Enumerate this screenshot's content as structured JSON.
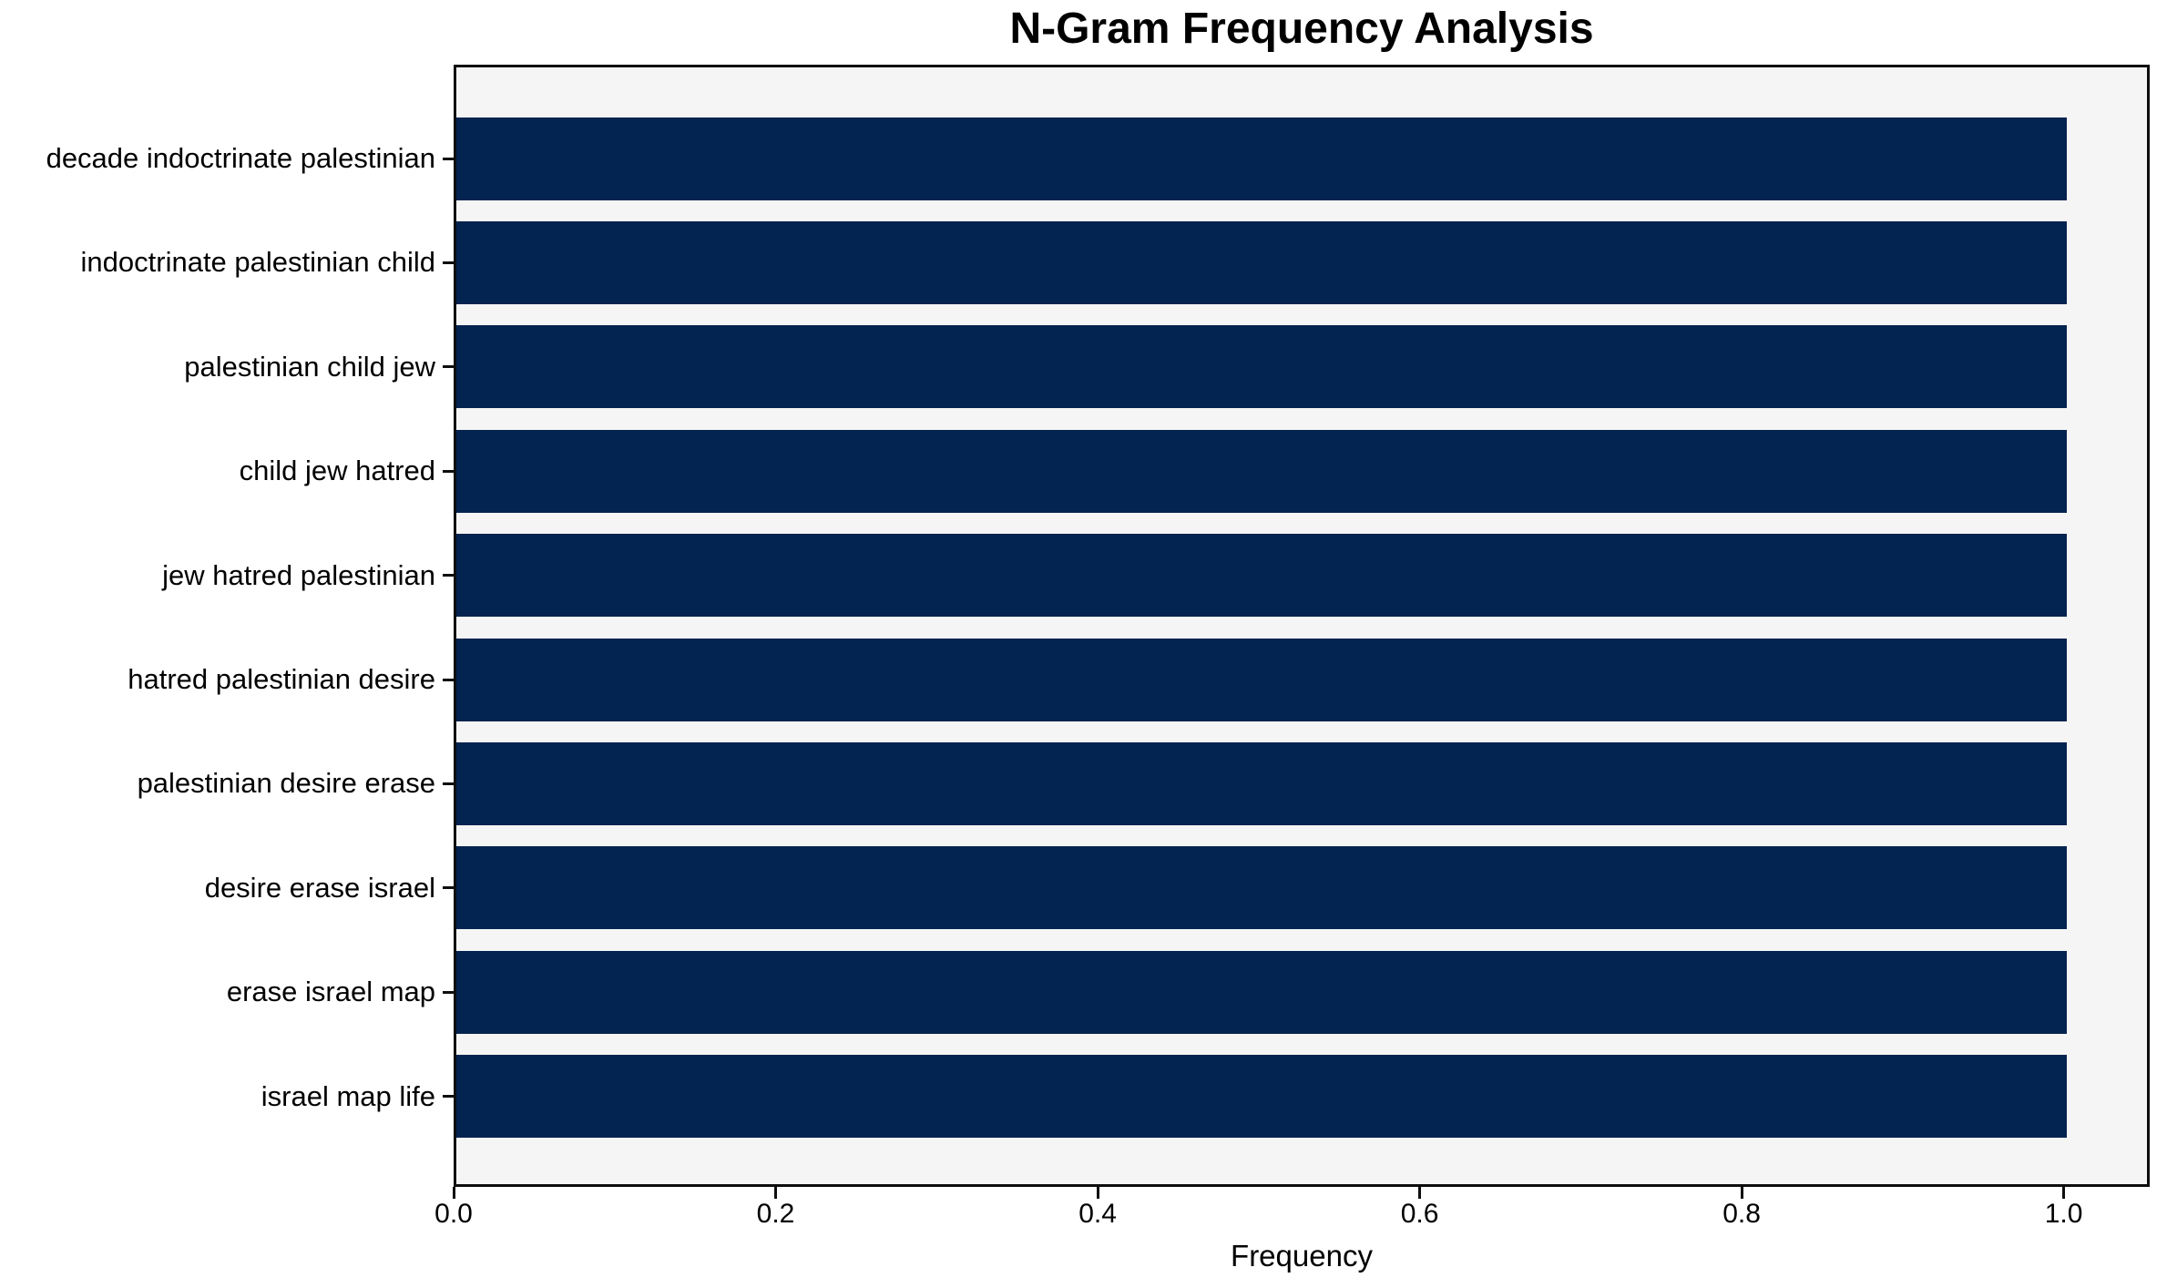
{
  "chart_data": {
    "type": "bar",
    "orientation": "horizontal",
    "title": "N-Gram Frequency Analysis",
    "xlabel": "Frequency",
    "ylabel": "",
    "categories": [
      "decade indoctrinate palestinian",
      "indoctrinate palestinian child",
      "palestinian child jew",
      "child jew hatred",
      "jew hatred palestinian",
      "hatred palestinian desire",
      "palestinian desire erase",
      "desire erase israel",
      "erase israel map",
      "israel map life"
    ],
    "values": [
      1.0,
      1.0,
      1.0,
      1.0,
      1.0,
      1.0,
      1.0,
      1.0,
      1.0,
      1.0
    ],
    "x_tick_labels": [
      "0.0",
      "0.2",
      "0.4",
      "0.6",
      "0.8",
      "1.0"
    ],
    "x_tick_values": [
      0.0,
      0.2,
      0.4,
      0.6,
      0.8,
      1.0
    ],
    "xlim": [
      0.0,
      1.05
    ],
    "grid": false,
    "legend": "none",
    "bar_color": "#032350",
    "plot_bg_color": "#f5f5f5",
    "figure_bg_color": "#ffffff",
    "spine_color": "#0e0e0e",
    "text_color": "#000000"
  }
}
